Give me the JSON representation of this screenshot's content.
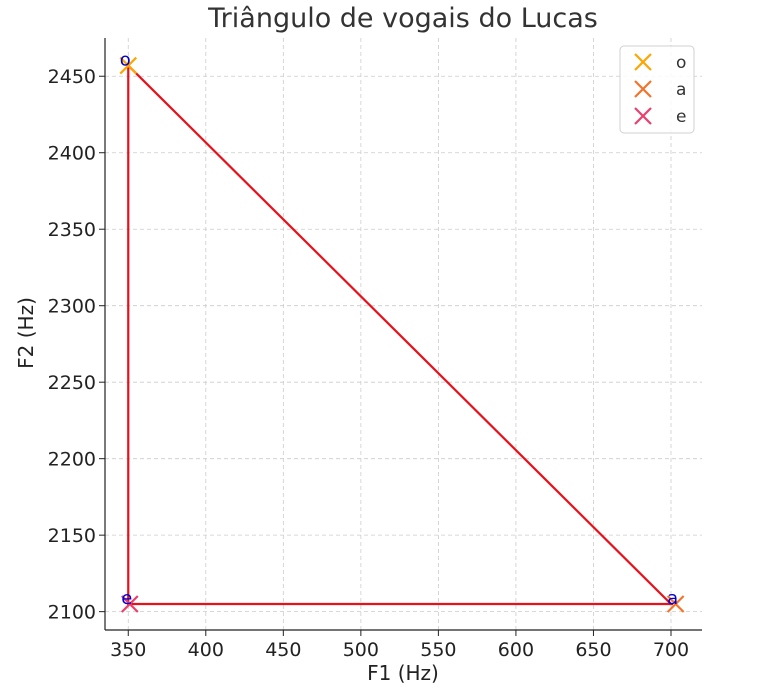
{
  "chart_data": {
    "type": "scatter",
    "title": "Triângulo de vogais do Lucas",
    "xlabel": "F1 (Hz)",
    "ylabel": "F2 (Hz)",
    "xlim": [
      335,
      720
    ],
    "ylim": [
      2088,
      2475
    ],
    "xticks": [
      350,
      400,
      450,
      500,
      550,
      600,
      650,
      700
    ],
    "yticks": [
      2100,
      2150,
      2200,
      2250,
      2300,
      2350,
      2400,
      2450
    ],
    "grid": true,
    "legend_position": "top-right",
    "series": [
      {
        "name": "o",
        "color": "#ffa500",
        "points": [
          {
            "x": 350,
            "y": 2457
          }
        ]
      },
      {
        "name": "a",
        "color": "#f4732b",
        "points": [
          {
            "x": 703,
            "y": 2105
          }
        ]
      },
      {
        "name": "e",
        "color": "#ee3e6b",
        "points": [
          {
            "x": 351,
            "y": 2105
          }
        ]
      }
    ],
    "annotations": [
      {
        "text": "o",
        "x": 350,
        "y": 2457
      },
      {
        "text": "a",
        "x": 703,
        "y": 2105
      },
      {
        "text": "e",
        "x": 351,
        "y": 2105
      }
    ],
    "triangle": {
      "color": "#e8101a",
      "vertices": [
        {
          "x": 350,
          "y": 2457
        },
        {
          "x": 350,
          "y": 2105
        },
        {
          "x": 700,
          "y": 2105
        }
      ]
    }
  }
}
